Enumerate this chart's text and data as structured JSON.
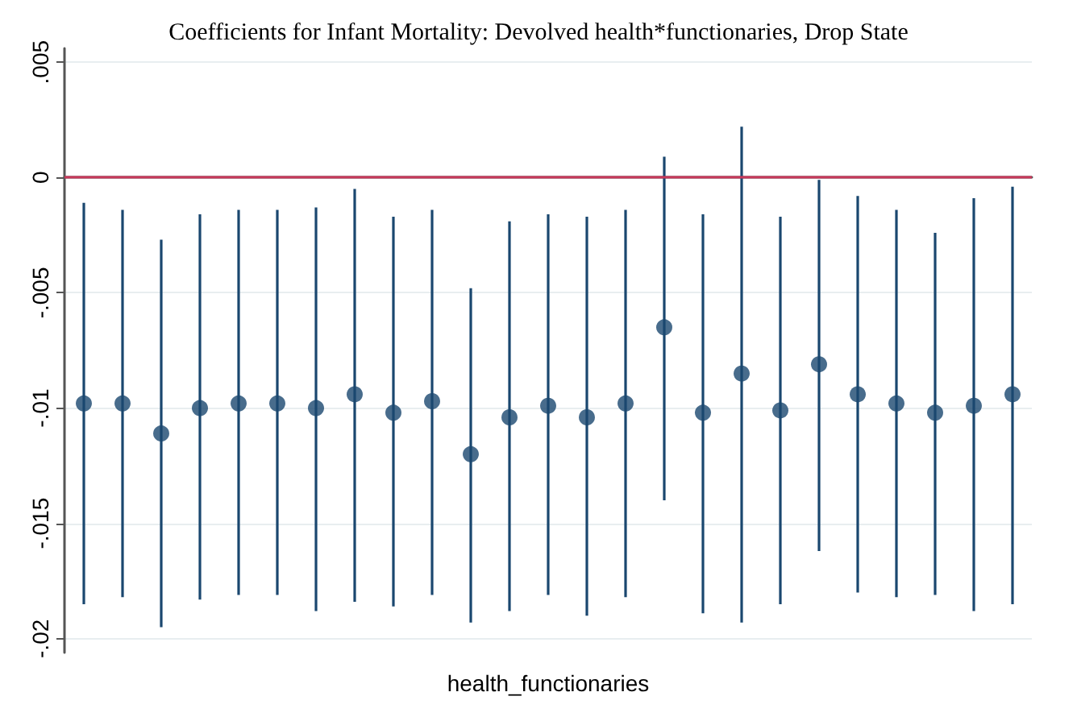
{
  "chart_data": {
    "type": "scatter",
    "title": "Coefficients for Infant Mortality: Devolved health*functionaries, Drop State",
    "xlabel": "health_functionaries",
    "categories": [
      null,
      null,
      null,
      null,
      null,
      null,
      null,
      null,
      null,
      null,
      null,
      null,
      null,
      null,
      null,
      null,
      null,
      null,
      null,
      null,
      null,
      null,
      null,
      null,
      null
    ],
    "series": [
      {
        "color": "#1a476f",
        "values": [
          -0.0098,
          -0.0098,
          -0.0111,
          -0.01,
          -0.0098,
          -0.0098,
          -0.01,
          -0.0094,
          -0.0102,
          -0.0097,
          -0.012,
          -0.0104,
          -0.0099,
          -0.0104,
          -0.0098,
          -0.0065,
          -0.0102,
          -0.0085,
          -0.0101,
          -0.0081,
          -0.0094,
          -0.0098,
          -0.0102,
          -0.0099,
          -0.0094
        ],
        "errors": [
          [
            -0.0185,
            -0.0011
          ],
          [
            -0.0182,
            -0.0014
          ],
          [
            -0.0195,
            -0.0027
          ],
          [
            -0.0183,
            -0.0016
          ],
          [
            -0.0181,
            -0.0014
          ],
          [
            -0.0181,
            -0.0014
          ],
          [
            -0.0188,
            -0.0013
          ],
          [
            -0.0184,
            -0.0005
          ],
          [
            -0.0186,
            -0.0017
          ],
          [
            -0.0181,
            -0.0014
          ],
          [
            -0.0193,
            -0.0048
          ],
          [
            -0.0188,
            -0.0019
          ],
          [
            -0.0181,
            -0.0016
          ],
          [
            -0.019,
            -0.0017
          ],
          [
            -0.0182,
            -0.0014
          ],
          [
            -0.014,
            0.0009
          ],
          [
            -0.0189,
            -0.0016
          ],
          [
            -0.0193,
            0.0022
          ],
          [
            -0.0185,
            -0.0017
          ],
          [
            -0.0162,
            -0.0001
          ],
          [
            -0.018,
            -0.0008
          ],
          [
            -0.0182,
            -0.0014
          ],
          [
            -0.0181,
            -0.0024
          ],
          [
            -0.0188,
            -0.0009
          ],
          [
            -0.0185,
            -0.0004
          ]
        ]
      }
    ],
    "ylim": [
      -0.0206,
      0.0056
    ],
    "yticks": [
      {
        "value": 0.005,
        "label": ".005"
      },
      0,
      {
        "value": -0.005,
        "label": "-.005"
      },
      {
        "value": -0.01,
        "label": "-.01"
      },
      {
        "value": -0.015,
        "label": "-.015"
      },
      {
        "value": -0.02,
        "label": "-.02"
      }
    ],
    "tick_labels": "y",
    "grid": "y",
    "marker": "circle",
    "ref_lines": [
      {
        "axis": "y",
        "value": 0,
        "color": "#c8385a"
      }
    ]
  }
}
